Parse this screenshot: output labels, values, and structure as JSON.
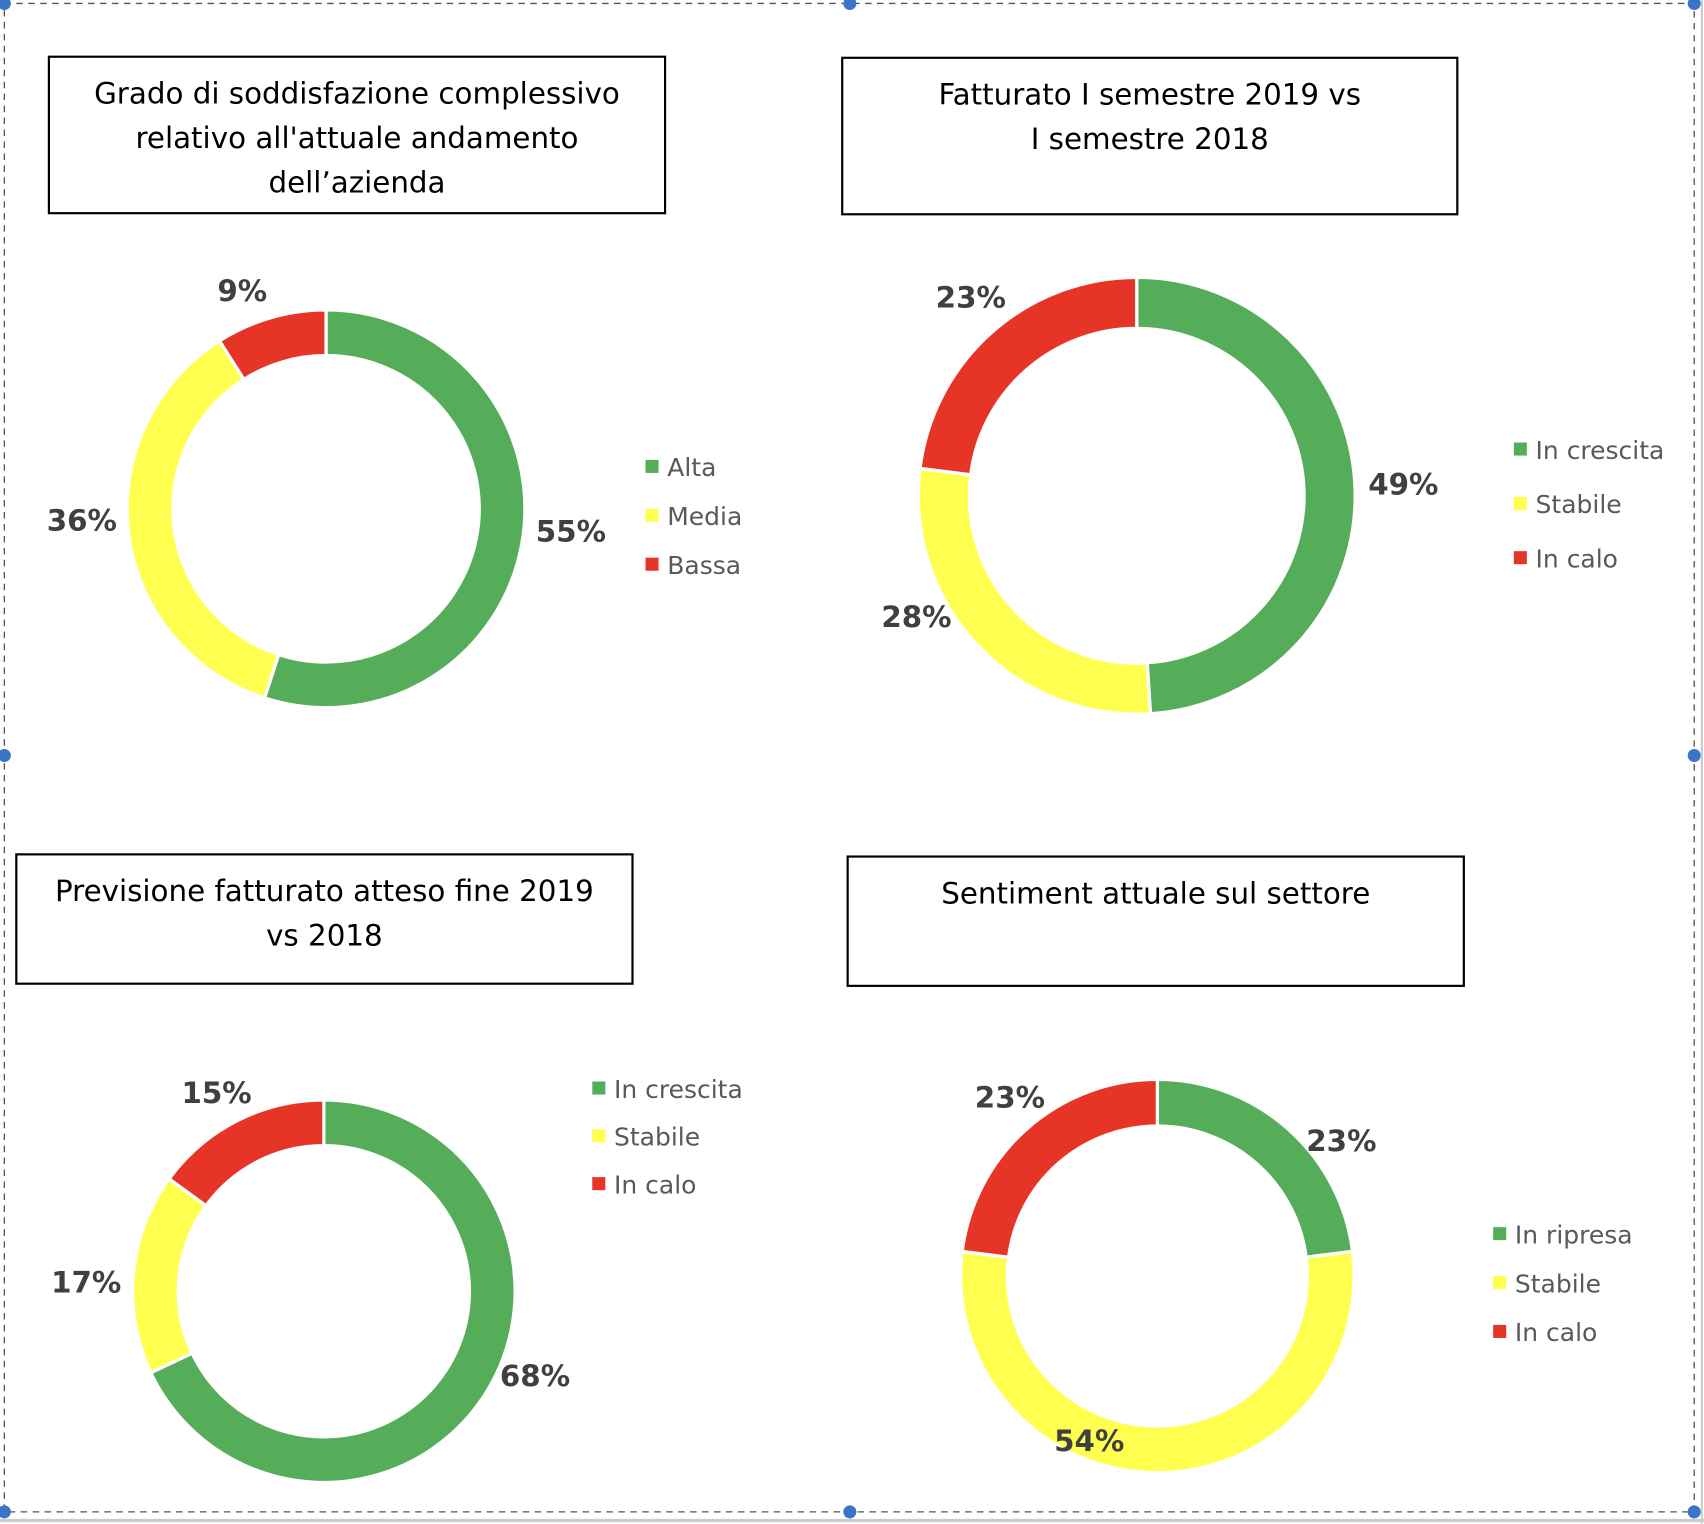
{
  "colors": {
    "green": "#55ad5a",
    "yellow": "#ffff4f",
    "red": "#e63526"
  },
  "chart_data": [
    {
      "type": "pie",
      "variant": "donut",
      "title_lines": [
        "Grado di soddisfazione complessivo",
        "relativo all'attuale andamento",
        "dell’azienda"
      ],
      "categories": [
        "Alta",
        "Media",
        "Bassa"
      ],
      "values": [
        55,
        36,
        9
      ],
      "labels": [
        "55%",
        "36%",
        "9%"
      ],
      "legend": "right"
    },
    {
      "type": "pie",
      "variant": "donut",
      "title_lines": [
        "Fatturato I semestre 2019 vs",
        "I semestre 2018"
      ],
      "categories": [
        "In crescita",
        "Stabile",
        "In calo"
      ],
      "values": [
        49,
        28,
        23
      ],
      "labels": [
        "49%",
        "28%",
        "23%"
      ],
      "legend": "right"
    },
    {
      "type": "pie",
      "variant": "donut",
      "title_lines": [
        "Previsione fatturato atteso fine 2019",
        "vs 2018"
      ],
      "categories": [
        "In crescita",
        "Stabile",
        "In calo"
      ],
      "values": [
        68,
        17,
        15
      ],
      "labels": [
        "68%",
        "17%",
        "15%"
      ],
      "legend": "top-right"
    },
    {
      "type": "pie",
      "variant": "donut",
      "title_lines": [
        "Sentiment attuale sul settore"
      ],
      "categories": [
        "In ripresa",
        "Stabile",
        "In calo"
      ],
      "values": [
        23,
        54,
        23
      ],
      "labels": [
        "23%",
        "54%",
        "23%"
      ],
      "legend": "right"
    }
  ]
}
